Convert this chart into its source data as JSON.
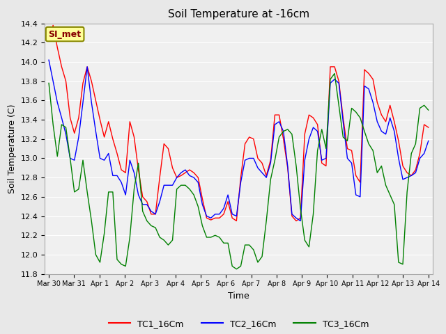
{
  "title": "Soil Temperature at -16cm",
  "xlabel": "Time",
  "ylabel": "Soil Temperature (C)",
  "ylim": [
    11.8,
    14.4
  ],
  "bg_color": "#e8e8e8",
  "plot_bg": "#f0f0f0",
  "annotation_text": "SI_met",
  "annotation_bg": "#ffff99",
  "annotation_border": "#888800",
  "tick_labels": [
    "Mar 30",
    "Mar 31",
    "Apr 1",
    "Apr 2",
    "Apr 3",
    "Apr 4",
    "Apr 5",
    "Apr 6",
    "Apr 7",
    "Apr 8",
    "Apr 9",
    "Apr 10",
    "Apr 11",
    "Apr 12",
    "Apr 13",
    "Apr 14"
  ],
  "yticks": [
    11.8,
    12.0,
    12.2,
    12.4,
    12.6,
    12.8,
    13.0,
    13.2,
    13.4,
    13.6,
    13.8,
    14.0,
    14.2,
    14.4
  ],
  "tc1": [
    14.22,
    14.38,
    14.15,
    13.95,
    13.8,
    13.42,
    13.26,
    13.42,
    13.78,
    13.95,
    13.8,
    13.6,
    13.4,
    13.22,
    13.38,
    13.2,
    13.05,
    12.88,
    12.85,
    13.38,
    13.22,
    12.88,
    12.6,
    12.55,
    12.42,
    12.42,
    12.8,
    13.15,
    13.1,
    12.9,
    12.8,
    12.82,
    12.85,
    12.88,
    12.85,
    12.8,
    12.58,
    12.38,
    12.36,
    12.38,
    12.38,
    12.42,
    12.55,
    12.38,
    12.35,
    12.8,
    13.15,
    13.22,
    13.2,
    13.0,
    12.95,
    12.82,
    12.98,
    13.45,
    13.45,
    13.2,
    12.9,
    12.4,
    12.35,
    12.38,
    13.25,
    13.45,
    13.42,
    13.35,
    12.95,
    12.92,
    13.95,
    13.95,
    13.8,
    13.42,
    13.1,
    13.08,
    12.82,
    12.75,
    13.92,
    13.88,
    13.82,
    13.58,
    13.45,
    13.38,
    13.55,
    13.38,
    13.18,
    12.92,
    12.85,
    12.82,
    12.88,
    13.05,
    13.35,
    13.32
  ],
  "tc2": [
    14.02,
    13.8,
    13.58,
    13.42,
    13.25,
    13.0,
    12.98,
    13.22,
    13.58,
    13.95,
    13.58,
    13.28,
    13.0,
    12.98,
    13.05,
    12.82,
    12.82,
    12.75,
    12.62,
    12.98,
    12.85,
    12.62,
    12.52,
    12.52,
    12.45,
    12.42,
    12.55,
    12.72,
    12.72,
    12.72,
    12.8,
    12.85,
    12.88,
    12.82,
    12.8,
    12.75,
    12.52,
    12.4,
    12.38,
    12.42,
    12.42,
    12.48,
    12.62,
    12.42,
    12.4,
    12.75,
    12.98,
    13.0,
    13.0,
    12.9,
    12.85,
    12.8,
    12.95,
    13.35,
    13.38,
    13.28,
    12.92,
    12.42,
    12.38,
    12.35,
    12.98,
    13.2,
    13.32,
    13.28,
    12.98,
    13.0,
    13.78,
    13.82,
    13.78,
    13.38,
    13.0,
    12.95,
    12.62,
    12.6,
    13.75,
    13.72,
    13.58,
    13.38,
    13.28,
    13.25,
    13.42,
    13.28,
    13.0,
    12.78,
    12.8,
    12.82,
    12.85,
    13.0,
    13.05,
    13.18
  ],
  "tc3": [
    13.78,
    13.35,
    13.02,
    13.35,
    13.32,
    13.0,
    12.65,
    12.68,
    12.98,
    12.65,
    12.35,
    12.0,
    11.92,
    12.22,
    12.65,
    12.65,
    11.95,
    11.9,
    11.88,
    12.18,
    12.68,
    12.95,
    12.45,
    12.35,
    12.3,
    12.28,
    12.18,
    12.15,
    12.1,
    12.15,
    12.68,
    12.72,
    12.72,
    12.68,
    12.62,
    12.5,
    12.3,
    12.18,
    12.18,
    12.2,
    12.18,
    12.12,
    12.12,
    11.88,
    11.85,
    11.88,
    12.1,
    12.1,
    12.05,
    11.92,
    11.98,
    12.35,
    12.78,
    12.98,
    13.22,
    13.28,
    13.3,
    13.25,
    12.92,
    12.48,
    12.15,
    12.08,
    12.42,
    13.08,
    13.3,
    13.1,
    13.82,
    13.88,
    13.55,
    13.22,
    13.18,
    13.52,
    13.48,
    13.42,
    13.28,
    13.15,
    13.08,
    12.85,
    12.92,
    12.72,
    12.62,
    12.52,
    11.92,
    11.9,
    12.65,
    13.05,
    13.15,
    13.52,
    13.55,
    13.5
  ]
}
